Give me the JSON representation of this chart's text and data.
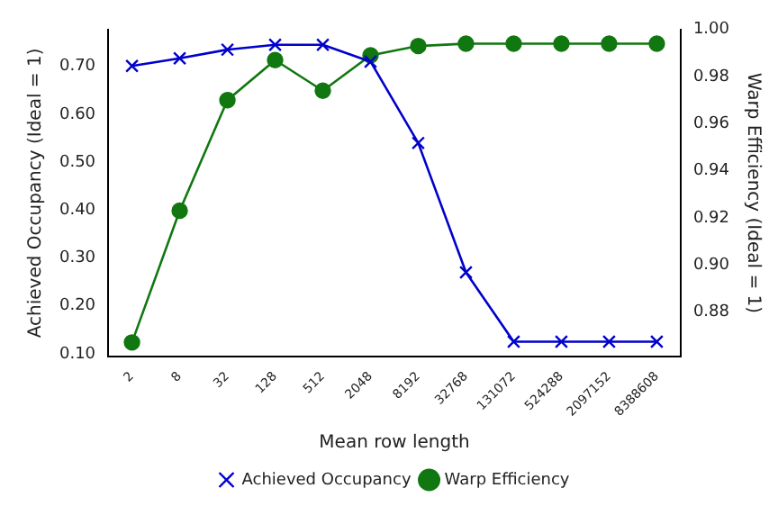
{
  "chart_data": {
    "type": "line",
    "xlabel": "Mean row length",
    "ylabel": "Achieved Occupancy (Ideal = 1)",
    "y2label": "Warp Efficiency (Ideal = 1)",
    "categories": [
      "2",
      "8",
      "32",
      "128",
      "512",
      "2048",
      "8192",
      "32768",
      "131072",
      "524288",
      "2097152",
      "8388608"
    ],
    "series": [
      {
        "name": "Achieved Occupancy",
        "color": "#0000cc",
        "marker": "cross",
        "values": [
          0.701,
          0.717,
          0.735,
          0.745,
          0.745,
          0.71,
          0.54,
          0.27,
          0.125,
          0.125,
          0.125,
          0.125
        ]
      },
      {
        "name": "Warp Efficiency",
        "color": "#117711",
        "marker": "circle",
        "axis": "y2",
        "values": [
          0.867,
          0.923,
          0.97,
          0.987,
          0.974,
          0.989,
          0.993,
          0.994,
          0.994,
          0.994,
          0.994,
          0.994
        ]
      }
    ],
    "ylim": [
      0.094,
      0.777
    ],
    "yticks": [
      {
        "value": 0.1,
        "label": "0.10"
      },
      {
        "value": 0.2,
        "label": "0.20"
      },
      {
        "value": 0.3,
        "label": "0.30"
      },
      {
        "value": 0.4,
        "label": "0.40"
      },
      {
        "value": 0.5,
        "label": "0.50"
      },
      {
        "value": 0.6,
        "label": "0.60"
      },
      {
        "value": 0.7,
        "label": "0.70"
      }
    ],
    "y2lim": [
      0.861,
      1.0
    ],
    "y2ticks": [
      {
        "value": 0.88,
        "label": "0.88"
      },
      {
        "value": 0.9,
        "label": "0.90"
      },
      {
        "value": 0.92,
        "label": "0.92"
      },
      {
        "value": 0.94,
        "label": "0.94"
      },
      {
        "value": 0.96,
        "label": "0.96"
      },
      {
        "value": 0.98,
        "label": "0.98"
      },
      {
        "value": 1.0,
        "label": "1.00"
      }
    ],
    "grid": false,
    "legend": "bottom",
    "line_style": "solid"
  }
}
